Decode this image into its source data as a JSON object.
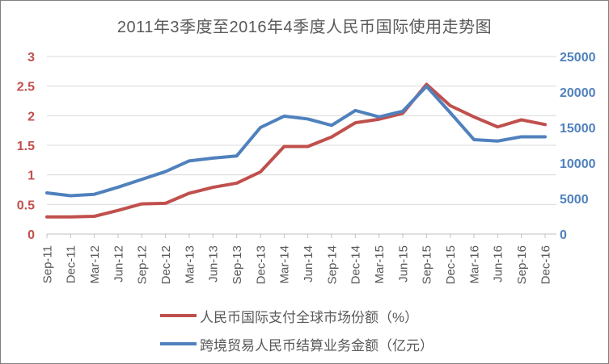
{
  "title": "2011年3季度至2016年4季度人民币国际使用走势图",
  "chart_data": {
    "type": "line",
    "categories": [
      "Sep-11",
      "Dec-11",
      "Mar-12",
      "Jun-12",
      "Sep-12",
      "Dec-12",
      "Mar-13",
      "Jun-13",
      "Sep-13",
      "Dec-13",
      "Mar-14",
      "Jun-14",
      "Sep-14",
      "Dec-14",
      "Mar-15",
      "Jun-15",
      "Sep-15",
      "Dec-15",
      "Mar-16",
      "Jun-16",
      "Sep-16",
      "Dec-16"
    ],
    "series": [
      {
        "name": "人民币国际支付全球市场份额（%）",
        "axis": "left",
        "color": "#C0504D",
        "values": [
          0.29,
          0.29,
          0.3,
          0.4,
          0.51,
          0.52,
          0.69,
          0.79,
          0.86,
          1.05,
          1.48,
          1.48,
          1.64,
          1.88,
          1.94,
          2.04,
          2.53,
          2.17,
          1.98,
          1.81,
          1.93,
          1.85
        ]
      },
      {
        "name": "跨境贸易人民币结算业务金额（亿元）",
        "axis": "right",
        "color": "#4F81BD",
        "values": [
          5800,
          5400,
          5600,
          6600,
          7700,
          8800,
          10300,
          10700,
          11000,
          15000,
          16600,
          16200,
          15300,
          17400,
          16500,
          17300,
          20800,
          17100,
          13300,
          13100,
          13700,
          13700
        ]
      }
    ],
    "left_axis": {
      "min": 0,
      "max": 3,
      "tick_labels": [
        "3",
        "2.5",
        "2",
        "1.5",
        "1",
        "0.5",
        "0"
      ],
      "color": "#C0504D"
    },
    "right_axis": {
      "min": 0,
      "max": 25000,
      "tick_labels": [
        "25000",
        "20000",
        "15000",
        "10000",
        "5000",
        "0"
      ],
      "color": "#4F81BD"
    },
    "grid": true,
    "legend_position": "bottom",
    "title": "2011年3季度至2016年4季度人民币国际使用走势图"
  },
  "colors": {
    "gridline": "#D9D9D9",
    "axis_line": "#BFBFBF",
    "x_tick_label": "#595959",
    "title_text": "#595959",
    "legend_text": "#595959",
    "background": "#FFFFFF"
  }
}
